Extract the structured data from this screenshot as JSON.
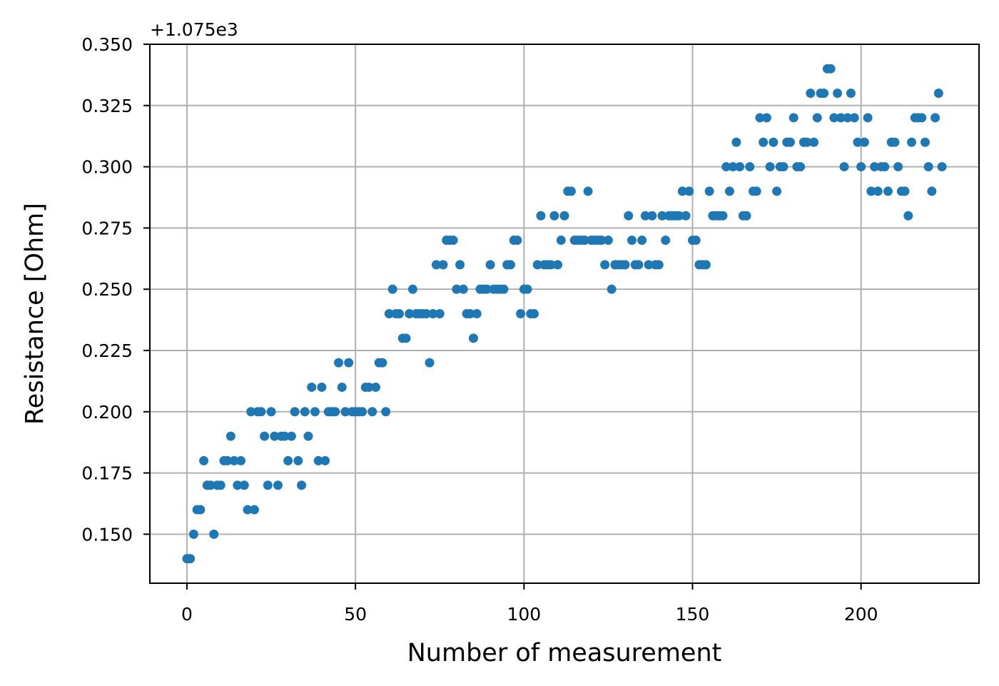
{
  "chart_data": {
    "type": "scatter",
    "xlabel": "Number of measurement",
    "ylabel": "Resistance [Ohm]",
    "y_offset_label": "+1.075e3",
    "xlim": [
      -11,
      235
    ],
    "ylim": [
      0.13,
      0.35
    ],
    "x_ticks": [
      0,
      50,
      100,
      150,
      200
    ],
    "x_tick_labels": [
      "0",
      "50",
      "100",
      "150",
      "200"
    ],
    "y_ticks": [
      0.15,
      0.175,
      0.2,
      0.225,
      0.25,
      0.275,
      0.3,
      0.325,
      0.35
    ],
    "y_tick_labels": [
      "0.150",
      "0.175",
      "0.200",
      "0.225",
      "0.250",
      "0.275",
      "0.300",
      "0.325",
      "0.350"
    ],
    "grid": true,
    "marker_color": "#1f77b4",
    "series": [
      {
        "x": [
          0,
          1,
          2,
          3,
          4,
          5,
          6,
          7,
          8,
          9,
          10,
          11,
          12,
          13,
          14,
          15,
          16,
          17,
          18,
          19,
          20,
          21,
          22,
          23,
          24,
          25,
          26,
          27,
          28,
          29,
          30,
          31,
          32,
          33,
          34,
          35,
          36,
          37,
          38,
          39,
          40,
          41,
          42,
          43,
          44,
          45,
          46,
          47,
          48,
          49,
          50,
          51,
          52,
          53,
          54,
          55,
          56,
          57,
          58,
          59,
          60,
          61,
          62,
          63,
          64,
          65,
          66,
          67,
          68,
          69,
          70,
          71,
          72,
          73,
          74,
          75,
          76,
          77,
          78,
          79,
          80,
          81,
          82,
          83,
          84,
          85,
          86,
          87,
          88,
          89,
          90,
          91,
          92,
          93,
          94,
          95,
          96,
          97,
          98,
          99,
          100,
          101,
          102,
          103,
          104,
          105,
          106,
          107,
          108,
          109,
          110,
          111,
          112,
          113,
          114,
          115,
          116,
          117,
          118,
          119,
          120,
          121,
          122,
          123,
          124,
          125,
          126,
          127,
          128,
          129,
          130,
          131,
          132,
          133,
          134,
          135,
          136,
          137,
          138,
          139,
          140,
          141,
          142,
          143,
          144,
          145,
          146,
          147,
          148,
          149,
          150,
          151,
          152,
          153,
          154,
          155,
          156,
          157,
          158,
          159,
          160,
          161,
          162,
          163,
          164,
          165,
          166,
          167,
          168,
          169,
          170,
          171,
          172,
          173,
          174,
          175,
          176,
          177,
          178,
          179,
          180,
          181,
          182,
          183,
          184,
          185,
          186,
          187,
          188,
          189,
          190,
          191,
          192,
          193,
          194,
          195,
          196,
          197,
          198,
          199,
          200,
          201,
          202,
          203,
          204,
          205,
          206,
          207,
          208,
          209,
          210,
          211,
          212,
          213,
          214,
          215,
          216,
          217,
          218,
          219,
          220,
          221,
          222,
          223,
          224
        ],
        "y": [
          0.14,
          0.14,
          0.15,
          0.16,
          0.16,
          0.18,
          0.17,
          0.17,
          0.15,
          0.17,
          0.17,
          0.18,
          0.18,
          0.19,
          0.18,
          0.17,
          0.18,
          0.17,
          0.16,
          0.2,
          0.16,
          0.2,
          0.2,
          0.19,
          0.17,
          0.2,
          0.19,
          0.17,
          0.19,
          0.19,
          0.18,
          0.19,
          0.2,
          0.18,
          0.17,
          0.2,
          0.19,
          0.21,
          0.2,
          0.18,
          0.21,
          0.18,
          0.2,
          0.2,
          0.2,
          0.22,
          0.21,
          0.2,
          0.22,
          0.2,
          0.2,
          0.2,
          0.2,
          0.21,
          0.21,
          0.2,
          0.21,
          0.22,
          0.22,
          0.2,
          0.24,
          0.25,
          0.24,
          0.24,
          0.23,
          0.23,
          0.24,
          0.25,
          0.24,
          0.24,
          0.24,
          0.24,
          0.22,
          0.24,
          0.26,
          0.24,
          0.26,
          0.27,
          0.27,
          0.27,
          0.25,
          0.26,
          0.25,
          0.24,
          0.24,
          0.23,
          0.24,
          0.25,
          0.25,
          0.25,
          0.26,
          0.25,
          0.25,
          0.25,
          0.25,
          0.26,
          0.26,
          0.27,
          0.27,
          0.24,
          0.25,
          0.25,
          0.24,
          0.24,
          0.26,
          0.28,
          0.26,
          0.26,
          0.26,
          0.28,
          0.26,
          0.27,
          0.28,
          0.29,
          0.29,
          0.27,
          0.27,
          0.27,
          0.27,
          0.29,
          0.27,
          0.27,
          0.27,
          0.27,
          0.26,
          0.27,
          0.25,
          0.26,
          0.26,
          0.26,
          0.26,
          0.28,
          0.27,
          0.26,
          0.26,
          0.27,
          0.28,
          0.26,
          0.28,
          0.26,
          0.26,
          0.28,
          0.27,
          0.28,
          0.28,
          0.28,
          0.28,
          0.29,
          0.28,
          0.29,
          0.27,
          0.27,
          0.26,
          0.26,
          0.26,
          0.29,
          0.28,
          0.28,
          0.28,
          0.28,
          0.3,
          0.29,
          0.3,
          0.31,
          0.3,
          0.28,
          0.28,
          0.3,
          0.29,
          0.29,
          0.32,
          0.31,
          0.32,
          0.3,
          0.31,
          0.29,
          0.3,
          0.3,
          0.31,
          0.31,
          0.32,
          0.3,
          0.3,
          0.31,
          0.31,
          0.33,
          0.31,
          0.32,
          0.33,
          0.33,
          0.34,
          0.34,
          0.32,
          0.33,
          0.32,
          0.3,
          0.32,
          0.33,
          0.32,
          0.31,
          0.3,
          0.31,
          0.32,
          0.29,
          0.3,
          0.29,
          0.3,
          0.3,
          0.29,
          0.31,
          0.31,
          0.3,
          0.29,
          0.29,
          0.28,
          0.31,
          0.32,
          0.32,
          0.32,
          0.31,
          0.3,
          0.29,
          0.32,
          0.33,
          0.3
        ]
      }
    ]
  }
}
